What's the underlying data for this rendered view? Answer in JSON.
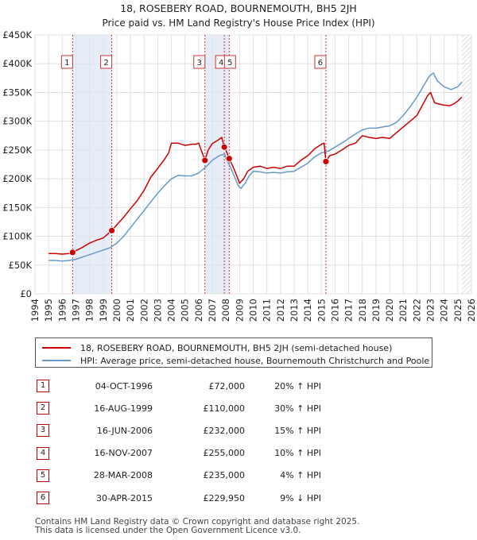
{
  "chart_data": {
    "type": "line",
    "title": "18, ROSEBERY ROAD, BOURNEMOUTH, BH5 2JH",
    "subtitle": "Price paid vs. HM Land Registry's House Price Index (HPI)",
    "xlim": [
      1994,
      2026
    ],
    "ylim": [
      0,
      450000
    ],
    "x_ticks": [
      1994,
      1995,
      1996,
      1997,
      1998,
      1999,
      2000,
      2001,
      2002,
      2003,
      2004,
      2005,
      2006,
      2007,
      2008,
      2009,
      2010,
      2011,
      2012,
      2013,
      2014,
      2015,
      2016,
      2017,
      2018,
      2019,
      2020,
      2021,
      2022,
      2023,
      2024,
      2025,
      2026
    ],
    "y_ticks": [
      {
        "value": 0,
        "label": "£0"
      },
      {
        "value": 50000,
        "label": "£50K"
      },
      {
        "value": 100000,
        "label": "£100K"
      },
      {
        "value": 150000,
        "label": "£150K"
      },
      {
        "value": 200000,
        "label": "£200K"
      },
      {
        "value": 250000,
        "label": "£250K"
      },
      {
        "value": 300000,
        "label": "£300K"
      },
      {
        "value": 350000,
        "label": "£350K"
      },
      {
        "value": 400000,
        "label": "£400K"
      },
      {
        "value": 450000,
        "label": "£450K"
      }
    ],
    "series": [
      {
        "name": "18, ROSEBERY ROAD, BOURNEMOUTH, BH5 2JH (semi-detached house)",
        "color": "#cc0000",
        "x": [
          1995.0,
          1995.5,
          1996.0,
          1996.5,
          1996.76,
          1997.0,
          1997.5,
          1998.0,
          1998.5,
          1999.0,
          1999.63,
          2000.0,
          2000.5,
          2001.0,
          2001.5,
          2002.0,
          2002.5,
          2003.0,
          2003.5,
          2003.8,
          2004.0,
          2004.5,
          2005.0,
          2005.5,
          2005.8,
          2006.0,
          2006.46,
          2006.7,
          2007.0,
          2007.4,
          2007.7,
          2007.88,
          2008.0,
          2008.24,
          2008.5,
          2008.8,
          2009.0,
          2009.3,
          2009.6,
          2010.0,
          2010.5,
          2011.0,
          2011.5,
          2012.0,
          2012.5,
          2013.0,
          2013.5,
          2014.0,
          2014.5,
          2015.0,
          2015.2,
          2015.33,
          2015.6,
          2016.0,
          2016.5,
          2017.0,
          2017.5,
          2018.0,
          2018.5,
          2019.0,
          2019.5,
          2020.0,
          2020.5,
          2021.0,
          2021.5,
          2022.0,
          2022.5,
          2022.8,
          2023.0,
          2023.3,
          2023.6,
          2024.0,
          2024.4,
          2024.7,
          2025.0,
          2025.3
        ],
        "values": [
          70000,
          70000,
          69000,
          70000,
          72000,
          75000,
          81000,
          88000,
          93000,
          97000,
          110000,
          120000,
          133000,
          148000,
          162000,
          180000,
          203000,
          218000,
          234000,
          245000,
          262000,
          262000,
          258000,
          260000,
          260000,
          262000,
          232000,
          250000,
          261000,
          267000,
          272000,
          255000,
          250000,
          235000,
          222000,
          205000,
          192000,
          200000,
          213000,
          220000,
          222000,
          218000,
          220000,
          218000,
          222000,
          222000,
          232000,
          240000,
          252000,
          260000,
          262000,
          229950,
          240000,
          243000,
          250000,
          258000,
          262000,
          275000,
          272000,
          270000,
          272000,
          270000,
          280000,
          290000,
          300000,
          310000,
          332000,
          345000,
          350000,
          332000,
          330000,
          328000,
          327000,
          330000,
          335000,
          342000
        ]
      },
      {
        "name": "HPI: Average price, semi-detached house, Bournemouth Christchurch and Poole",
        "color": "#6699cc",
        "x": [
          1995.0,
          1995.5,
          1996.0,
          1996.5,
          1997.0,
          1997.5,
          1998.0,
          1998.5,
          1999.0,
          1999.5,
          2000.0,
          2000.5,
          2001.0,
          2001.5,
          2002.0,
          2002.5,
          2003.0,
          2003.5,
          2004.0,
          2004.5,
          2005.0,
          2005.5,
          2006.0,
          2006.5,
          2007.0,
          2007.5,
          2007.9,
          2008.0,
          2008.3,
          2008.6,
          2008.9,
          2009.1,
          2009.4,
          2009.7,
          2010.0,
          2010.5,
          2011.0,
          2011.5,
          2012.0,
          2012.5,
          2013.0,
          2013.5,
          2014.0,
          2014.5,
          2015.0,
          2015.5,
          2016.0,
          2016.5,
          2017.0,
          2017.5,
          2018.0,
          2018.5,
          2019.0,
          2019.5,
          2020.0,
          2020.5,
          2021.0,
          2021.5,
          2022.0,
          2022.5,
          2022.9,
          2023.2,
          2023.5,
          2024.0,
          2024.5,
          2025.0,
          2025.3
        ],
        "values": [
          58000,
          58000,
          57000,
          58000,
          60000,
          64000,
          68000,
          72000,
          76000,
          80000,
          88000,
          100000,
          115000,
          130000,
          145000,
          160000,
          175000,
          188000,
          200000,
          206000,
          205000,
          205000,
          210000,
          220000,
          232000,
          240000,
          243000,
          235000,
          222000,
          205000,
          188000,
          183000,
          192000,
          205000,
          213000,
          212000,
          210000,
          211000,
          210000,
          212000,
          213000,
          220000,
          227000,
          238000,
          245000,
          248000,
          255000,
          262000,
          270000,
          278000,
          285000,
          288000,
          288000,
          290000,
          292000,
          298000,
          310000,
          325000,
          342000,
          362000,
          378000,
          384000,
          370000,
          360000,
          355000,
          360000,
          368000
        ]
      }
    ],
    "sales": [
      {
        "label": "1",
        "x": 1996.76,
        "price": 72000
      },
      {
        "label": "2",
        "x": 1999.63,
        "price": 110000
      },
      {
        "label": "3",
        "x": 2006.46,
        "price": 232000
      },
      {
        "label": "4",
        "x": 2007.88,
        "price": 255000
      },
      {
        "label": "5",
        "x": 2008.24,
        "price": 235000
      },
      {
        "label": "6",
        "x": 2015.33,
        "price": 229950
      }
    ],
    "shaded_ranges": [
      [
        1996.76,
        1999.63
      ],
      [
        2006.46,
        2008.24
      ],
      [
        2015.33,
        2015.33
      ]
    ],
    "forecast_hatch_from": 2025.3
  },
  "legend": {
    "property_label": "18, ROSEBERY ROAD, BOURNEMOUTH, BH5 2JH (semi-detached house)",
    "hpi_label": "HPI: Average price, semi-detached house, Bournemouth Christchurch and Poole",
    "property_color": "#cc0000",
    "hpi_color": "#6699cc"
  },
  "transactions": [
    {
      "num": "1",
      "date": "04-OCT-1996",
      "price": "£72,000",
      "hpi": "20% ↑ HPI"
    },
    {
      "num": "2",
      "date": "16-AUG-1999",
      "price": "£110,000",
      "hpi": "30% ↑ HPI"
    },
    {
      "num": "3",
      "date": "16-JUN-2006",
      "price": "£232,000",
      "hpi": "15% ↑ HPI"
    },
    {
      "num": "4",
      "date": "16-NOV-2007",
      "price": "£255,000",
      "hpi": "10% ↑ HPI"
    },
    {
      "num": "5",
      "date": "28-MAR-2008",
      "price": "£235,000",
      "hpi": "4% ↑ HPI"
    },
    {
      "num": "6",
      "date": "30-APR-2015",
      "price": "£229,950",
      "hpi": "9% ↓ HPI"
    }
  ],
  "footer": {
    "line1": "Contains HM Land Registry data © Crown copyright and database right 2025.",
    "line2": "This data is licensed under the Open Government Licence v3.0."
  }
}
